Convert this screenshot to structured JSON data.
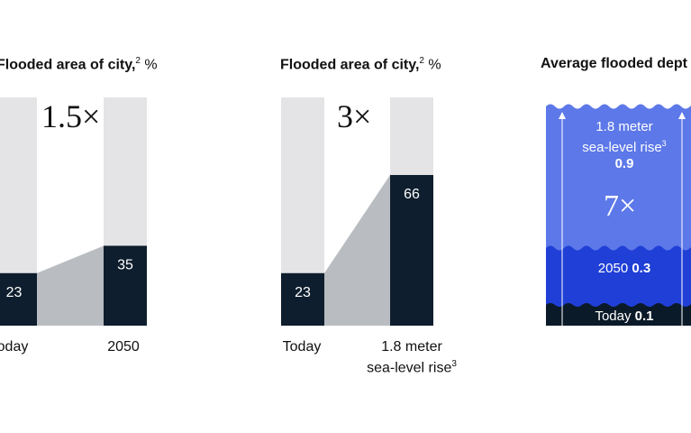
{
  "colors": {
    "bar_bg": "#e4e4e6",
    "bar_fill": "#0e1e2e",
    "connector": "#b9bcc1",
    "deep_blue": "#1f3fd6",
    "light_blue": "#5d78e9",
    "ground": "#0b1a29",
    "label_light": "#ffffff"
  },
  "chart_data": [
    {
      "type": "bar",
      "title": "Flooded area of city,",
      "title_sup": "2",
      "unit": "%",
      "categories": [
        "Today",
        "2050"
      ],
      "values": [
        23,
        35
      ],
      "value_labels": [
        "23",
        "35"
      ],
      "multiplier": "1.5×",
      "ylim": [
        0,
        100
      ]
    },
    {
      "type": "bar",
      "title": "Flooded area of city,",
      "title_sup": "2",
      "unit": "%",
      "categories": [
        "Today",
        "1.8 meter"
      ],
      "category_line2": "sea-level rise",
      "category_line2_sup": "3",
      "values": [
        23,
        66
      ],
      "value_labels": [
        "23",
        "66"
      ],
      "multiplier": "3×",
      "ylim": [
        0,
        100
      ]
    },
    {
      "type": "bar",
      "title": "Average flooded dept",
      "levels": [
        {
          "name": "Today",
          "value": 0.1,
          "value_label": "0.1"
        },
        {
          "name": "2050",
          "value": 0.3,
          "value_label": "0.3"
        },
        {
          "name": "1.8 meter",
          "line2": "sea-level rise",
          "line2_sup": "3",
          "value": 0.9,
          "value_label": "0.9"
        }
      ],
      "multiplier": "7×"
    }
  ]
}
